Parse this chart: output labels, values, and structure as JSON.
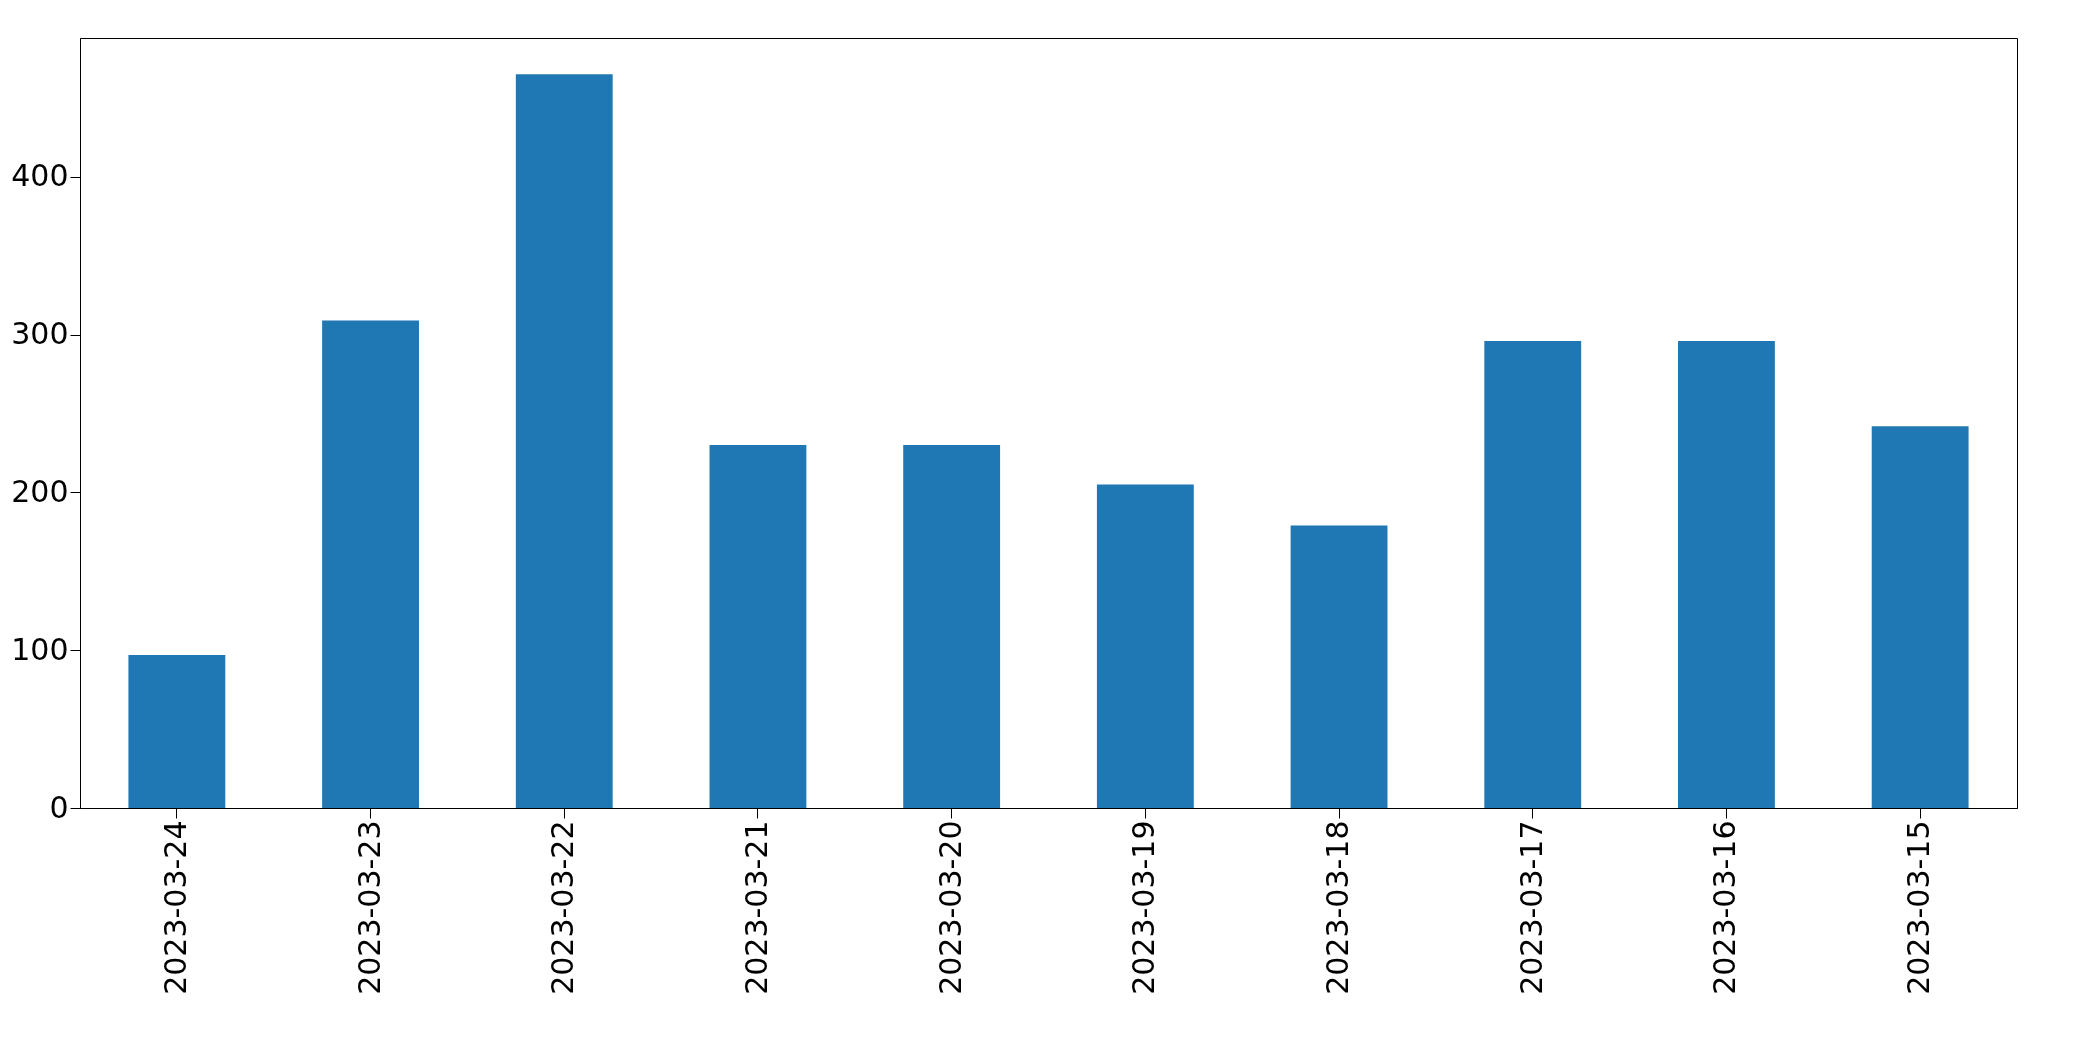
{
  "chart_data": {
    "type": "bar",
    "categories": [
      "2023-03-24",
      "2023-03-23",
      "2023-03-22",
      "2023-03-21",
      "2023-03-20",
      "2023-03-19",
      "2023-03-18",
      "2023-03-17",
      "2023-03-16",
      "2023-03-15"
    ],
    "values": [
      97,
      309,
      465,
      230,
      230,
      205,
      179,
      296,
      296,
      242
    ],
    "color": "#1f77b4",
    "ylim": [
      0,
      488
    ],
    "yticks": [
      0,
      100,
      200,
      300,
      400
    ],
    "grid": false
  }
}
